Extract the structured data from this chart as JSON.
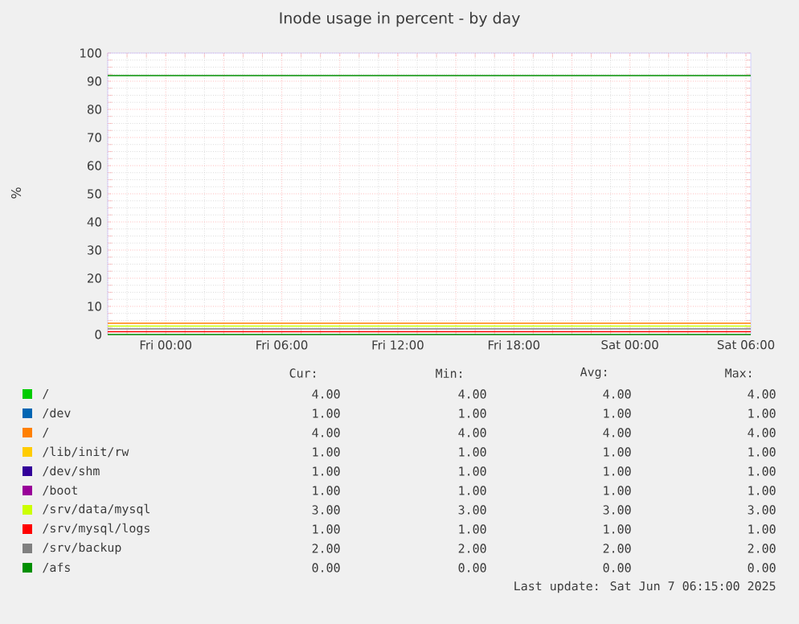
{
  "chart_data": {
    "type": "line",
    "title": "Inode usage in percent - by day",
    "ylabel": "%",
    "xlim": [
      "2025-06-05T21:00",
      "2025-06-07T06:15"
    ],
    "ylim": [
      0,
      100
    ],
    "xticks": [
      {
        "value": "2025-06-05T21:00",
        "label": null
      },
      {
        "value": "2025-06-06T00:00",
        "label": "Fri 00:00"
      },
      {
        "value": "2025-06-06T03:00",
        "label": null
      },
      {
        "value": "2025-06-06T06:00",
        "label": "Fri 06:00"
      },
      {
        "value": "2025-06-06T09:00",
        "label": null
      },
      {
        "value": "2025-06-06T12:00",
        "label": "Fri 12:00"
      },
      {
        "value": "2025-06-06T15:00",
        "label": null
      },
      {
        "value": "2025-06-06T18:00",
        "label": "Fri 18:00"
      },
      {
        "value": "2025-06-06T21:00",
        "label": null
      },
      {
        "value": "2025-06-07T00:00",
        "label": "Sat 00:00"
      },
      {
        "value": "2025-06-07T03:00",
        "label": null
      },
      {
        "value": "2025-06-07T06:00",
        "label": "Sat 06:00"
      }
    ],
    "yticks": [
      0,
      10,
      20,
      30,
      40,
      50,
      60,
      70,
      80,
      90,
      100
    ],
    "grid": true,
    "legend": "bottom",
    "marker": "none",
    "line_style": "solid",
    "series": [
      {
        "name": "/",
        "color": "#00cc00",
        "values": [
          null,
          null
        ]
      },
      {
        "name": "/dev",
        "color": "#0066b3",
        "values": [
          null,
          null
        ]
      },
      {
        "name": "/",
        "color": "#ff8000",
        "x": [
          "2025-06-05T21:00",
          "2025-06-07T06:15"
        ],
        "values": [
          4,
          4
        ]
      },
      {
        "name": "/lib/init/rw",
        "color": "#ffcc00",
        "values": [
          null,
          null
        ]
      },
      {
        "name": "/dev/shm",
        "color": "#330099",
        "values": [
          null,
          null
        ]
      },
      {
        "name": "/boot",
        "color": "#990099",
        "values": [
          null,
          null
        ]
      },
      {
        "name": "/srv/data/mysql",
        "color": "#ccff00",
        "x": [
          "2025-06-05T21:00",
          "2025-06-07T06:15"
        ],
        "values": [
          3,
          3
        ]
      },
      {
        "name": "/srv/mysql/logs",
        "color": "#ff0000",
        "x": [
          "2025-06-05T21:00",
          "2025-06-07T06:15"
        ],
        "values": [
          1,
          1
        ]
      },
      {
        "name": "/srv/backup",
        "color": "#808080",
        "x": [
          "2025-06-05T21:00",
          "2025-06-07T06:15"
        ],
        "values": [
          2,
          2
        ]
      },
      {
        "name": "/afs",
        "color": "#008f00",
        "x": [
          "2025-06-05T21:00",
          "2025-06-07T06:15"
        ],
        "values": [
          0,
          0
        ]
      }
    ],
    "ref_lines": [
      {
        "axis": "y",
        "value": 92,
        "color": "#008f00"
      }
    ],
    "annotations": [
      "Cur:",
      "Min:",
      "Avg:",
      "Max:",
      "4.00",
      "4.00",
      "4.00",
      "4.00",
      "1.00",
      "1.00",
      "1.00",
      "1.00",
      "4.00",
      "4.00",
      "4.00",
      "4.00",
      "1.00",
      "1.00",
      "1.00",
      "1.00",
      "1.00",
      "1.00",
      "1.00",
      "1.00",
      "1.00",
      "1.00",
      "1.00",
      "1.00",
      "3.00",
      "3.00",
      "3.00",
      "3.00",
      "1.00",
      "1.00",
      "1.00",
      "1.00",
      "2.00",
      "2.00",
      "2.00",
      "2.00",
      "0.00",
      "0.00",
      "0.00",
      "0.00",
      "Last update: Sat Jun  7 06:15:00 2025"
    ]
  }
}
